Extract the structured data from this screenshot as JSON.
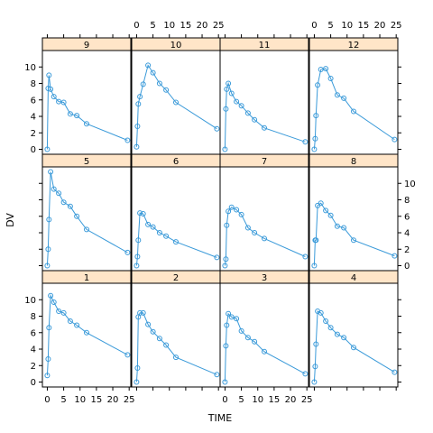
{
  "chart_data": {
    "type": "line",
    "layout": "lattice 4x3 panels",
    "xlabel": "TIME",
    "ylabel": "DV",
    "xlim": [
      -1.5,
      25.5
    ],
    "ylim": [
      -0.6,
      12.0
    ],
    "x_ticks": [
      0,
      5,
      10,
      15,
      20,
      25
    ],
    "y_ticks": [
      0,
      2,
      4,
      6,
      8,
      10
    ],
    "grid": false,
    "colors": {
      "series": "#3a9ad9",
      "strip": "#ffe5c8",
      "frame": "#000000"
    },
    "panels": [
      {
        "name": "1",
        "x": [
          0,
          0.25,
          0.5,
          1,
          2,
          3.5,
          5,
          7,
          9,
          12,
          24.5
        ],
        "y": [
          0.8,
          2.8,
          6.6,
          10.5,
          9.7,
          8.6,
          8.4,
          7.4,
          6.9,
          6.0,
          3.3
        ]
      },
      {
        "name": "2",
        "x": [
          0,
          0.25,
          0.5,
          1,
          2,
          3.5,
          5,
          7,
          9,
          12,
          24.5
        ],
        "y": [
          0.0,
          1.7,
          7.9,
          8.4,
          8.4,
          7.0,
          6.1,
          5.3,
          4.5,
          3.0,
          0.9
        ]
      },
      {
        "name": "3",
        "x": [
          0,
          0.25,
          0.5,
          1,
          2,
          3.5,
          5,
          7,
          9,
          12,
          24.5
        ],
        "y": [
          0.0,
          4.4,
          6.9,
          8.3,
          7.9,
          7.7,
          6.2,
          5.4,
          4.9,
          3.7,
          1.0
        ]
      },
      {
        "name": "4",
        "x": [
          0,
          0.25,
          0.5,
          1,
          2,
          3.5,
          5,
          7,
          9,
          12,
          24.5
        ],
        "y": [
          0.0,
          1.9,
          4.6,
          8.6,
          8.4,
          7.4,
          6.6,
          5.8,
          5.4,
          4.2,
          1.2
        ]
      },
      {
        "name": "5",
        "x": [
          0,
          0.25,
          0.5,
          1,
          2,
          3.5,
          5,
          7,
          9,
          12,
          24.5
        ],
        "y": [
          0.0,
          2.0,
          5.6,
          11.4,
          9.3,
          8.8,
          7.7,
          7.2,
          6.0,
          4.4,
          1.6
        ]
      },
      {
        "name": "6",
        "x": [
          0,
          0.25,
          0.5,
          1,
          2,
          3.5,
          5,
          7,
          9,
          12,
          24.5
        ],
        "y": [
          0.0,
          1.1,
          3.1,
          6.4,
          6.3,
          5.0,
          4.7,
          4.0,
          3.6,
          2.9,
          1.0
        ]
      },
      {
        "name": "7",
        "x": [
          0,
          0.25,
          0.5,
          1,
          2,
          3.5,
          5,
          7,
          9,
          12,
          24.5
        ],
        "y": [
          0.0,
          0.8,
          4.9,
          6.6,
          7.1,
          6.8,
          6.2,
          4.6,
          4.0,
          3.3,
          1.1
        ]
      },
      {
        "name": "8",
        "x": [
          0,
          0.25,
          0.5,
          1,
          2,
          3.5,
          5,
          7,
          9,
          12,
          24.5
        ],
        "y": [
          0.0,
          3.1,
          3.1,
          7.3,
          7.6,
          6.7,
          6.1,
          4.8,
          4.6,
          3.1,
          1.2
        ]
      },
      {
        "name": "9",
        "x": [
          0,
          0.25,
          0.5,
          1,
          2,
          3.5,
          5,
          7,
          9,
          12,
          24.5
        ],
        "y": [
          0.0,
          7.4,
          9.0,
          7.3,
          6.4,
          5.8,
          5.7,
          4.3,
          4.1,
          3.1,
          1.1
        ]
      },
      {
        "name": "10",
        "x": [
          0,
          0.25,
          0.5,
          1,
          2,
          3.5,
          5,
          7,
          9,
          12,
          24.5
        ],
        "y": [
          0.3,
          2.8,
          5.5,
          6.4,
          7.9,
          10.2,
          9.3,
          8.0,
          7.2,
          5.7,
          2.5
        ]
      },
      {
        "name": "11",
        "x": [
          0,
          0.25,
          0.5,
          1,
          2,
          3.5,
          5,
          7,
          9,
          12,
          24.5
        ],
        "y": [
          0.0,
          4.9,
          7.3,
          8.0,
          6.8,
          5.8,
          5.3,
          4.4,
          3.6,
          2.6,
          0.9
        ]
      },
      {
        "name": "12",
        "x": [
          0,
          0.25,
          0.5,
          1,
          2,
          3.5,
          5,
          7,
          9,
          12,
          24.5
        ],
        "y": [
          0.0,
          1.3,
          4.1,
          7.8,
          9.7,
          9.8,
          8.6,
          6.6,
          6.2,
          4.6,
          1.2
        ]
      }
    ]
  }
}
